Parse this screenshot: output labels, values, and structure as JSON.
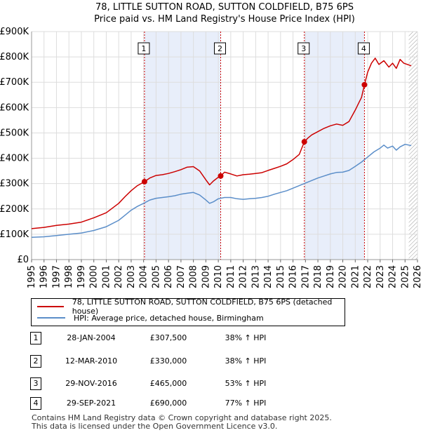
{
  "chart_data": {
    "type": "line",
    "title": "78, LITTLE SUTTON ROAD, SUTTON COLDFIELD, B75 6PS",
    "subtitle": "Price paid vs. HM Land Registry's House Price Index (HPI)",
    "xlabel": "",
    "ylabel": "",
    "xlim": [
      1995,
      2026
    ],
    "ylim": [
      0,
      900000
    ],
    "x_ticks": [
      "1995",
      "1996",
      "1997",
      "1998",
      "1999",
      "2000",
      "2001",
      "2002",
      "2003",
      "2004",
      "2005",
      "2006",
      "2007",
      "2008",
      "2009",
      "2010",
      "2011",
      "2012",
      "2013",
      "2014",
      "2015",
      "2016",
      "2017",
      "2018",
      "2019",
      "2020",
      "2021",
      "2022",
      "2023",
      "2024",
      "2025",
      "2026"
    ],
    "y_ticks": [
      {
        "value": 0,
        "label": "£0"
      },
      {
        "value": 100000,
        "label": "£100K"
      },
      {
        "value": 200000,
        "label": "£200K"
      },
      {
        "value": 300000,
        "label": "£300K"
      },
      {
        "value": 400000,
        "label": "£400K"
      },
      {
        "value": 500000,
        "label": "£500K"
      },
      {
        "value": 600000,
        "label": "£600K"
      },
      {
        "value": 700000,
        "label": "£700K"
      },
      {
        "value": 800000,
        "label": "£800K"
      },
      {
        "value": 900000,
        "label": "£900K"
      }
    ],
    "series": [
      {
        "name": "78, LITTLE SUTTON ROAD, SUTTON COLDFIELD, B75 6PS (detached house)",
        "color": "#cc0000",
        "x": [
          1995.0,
          1996.0,
          1997.0,
          1998.0,
          1999.0,
          2000.0,
          2001.0,
          2002.0,
          2002.5,
          2003.0,
          2003.5,
          2004.07,
          2004.5,
          2005.0,
          2005.5,
          2006.0,
          2006.5,
          2007.0,
          2007.5,
          2008.0,
          2008.5,
          2009.0,
          2009.3,
          2009.6,
          2010.0,
          2010.19,
          2010.5,
          2011.0,
          2011.5,
          2012.0,
          2012.5,
          2013.0,
          2013.5,
          2014.0,
          2014.5,
          2015.0,
          2015.5,
          2016.0,
          2016.5,
          2016.91,
          2017.2,
          2017.5,
          2018.0,
          2018.5,
          2019.0,
          2019.5,
          2020.0,
          2020.5,
          2021.0,
          2021.3,
          2021.5,
          2021.74,
          2022.0,
          2022.3,
          2022.6,
          2022.9,
          2023.3,
          2023.7,
          2024.0,
          2024.3,
          2024.6,
          2024.9,
          2025.2,
          2025.5
        ],
        "values": [
          122000,
          127000,
          135000,
          140000,
          148000,
          165000,
          185000,
          222000,
          248000,
          272000,
          292000,
          307500,
          322000,
          332000,
          335000,
          340000,
          347000,
          355000,
          365000,
          367000,
          350000,
          315000,
          295000,
          310000,
          325000,
          330000,
          345000,
          338000,
          330000,
          335000,
          337000,
          340000,
          343000,
          352000,
          360000,
          368000,
          378000,
          395000,
          415000,
          465000,
          480000,
          492000,
          505000,
          518000,
          528000,
          535000,
          530000,
          545000,
          590000,
          620000,
          640000,
          690000,
          740000,
          775000,
          795000,
          770000,
          785000,
          760000,
          775000,
          755000,
          790000,
          775000,
          770000,
          765000
        ]
      },
      {
        "name": "HPI: Average price, detached house, Birmingham",
        "color": "#5b8ec9",
        "x": [
          1995.0,
          1996.0,
          1997.0,
          1998.0,
          1999.0,
          2000.0,
          2001.0,
          2002.0,
          2002.5,
          2003.0,
          2003.5,
          2004.0,
          2004.5,
          2005.0,
          2005.5,
          2006.0,
          2006.5,
          2007.0,
          2007.5,
          2008.0,
          2008.5,
          2009.0,
          2009.3,
          2009.6,
          2010.0,
          2010.5,
          2011.0,
          2011.5,
          2012.0,
          2012.5,
          2013.0,
          2013.5,
          2014.0,
          2014.5,
          2015.0,
          2015.5,
          2016.0,
          2016.5,
          2017.0,
          2017.5,
          2018.0,
          2018.5,
          2019.0,
          2019.5,
          2020.0,
          2020.5,
          2021.0,
          2021.5,
          2022.0,
          2022.5,
          2023.0,
          2023.3,
          2023.6,
          2024.0,
          2024.3,
          2024.6,
          2025.0,
          2025.5
        ],
        "values": [
          88000,
          90000,
          95000,
          100000,
          105000,
          115000,
          130000,
          155000,
          175000,
          195000,
          210000,
          222000,
          235000,
          242000,
          245000,
          248000,
          252000,
          258000,
          262000,
          265000,
          255000,
          235000,
          222000,
          228000,
          240000,
          245000,
          245000,
          240000,
          238000,
          240000,
          242000,
          245000,
          250000,
          258000,
          265000,
          272000,
          282000,
          292000,
          302000,
          312000,
          322000,
          330000,
          338000,
          344000,
          345000,
          352000,
          368000,
          385000,
          405000,
          425000,
          440000,
          452000,
          440000,
          448000,
          432000,
          445000,
          455000,
          450000
        ]
      }
    ],
    "transactions": [
      {
        "num": "1",
        "x": 2004.07,
        "value": 307500
      },
      {
        "num": "2",
        "x": 2010.19,
        "value": 330000
      },
      {
        "num": "3",
        "x": 2016.91,
        "value": 465000
      },
      {
        "num": "4",
        "x": 2021.74,
        "value": 690000
      }
    ],
    "shaded_spans": [
      [
        2004.07,
        2010.19
      ],
      [
        2016.91,
        2021.74
      ]
    ],
    "future_hatch_from": 2025.3
  },
  "legend": {
    "property_label": "78, LITTLE SUTTON ROAD, SUTTON COLDFIELD, B75 6PS (detached house)",
    "hpi_label": "HPI: Average price, detached house, Birmingham"
  },
  "table": [
    {
      "num": "1",
      "date": "28-JAN-2004",
      "price": "£307,500",
      "hpi": "38% ↑ HPI"
    },
    {
      "num": "2",
      "date": "12-MAR-2010",
      "price": "£330,000",
      "hpi": "38% ↑ HPI"
    },
    {
      "num": "3",
      "date": "29-NOV-2016",
      "price": "£465,000",
      "hpi": "53% ↑ HPI"
    },
    {
      "num": "4",
      "date": "29-SEP-2021",
      "price": "£690,000",
      "hpi": "77% ↑ HPI"
    }
  ],
  "footer": {
    "line1": "Contains HM Land Registry data © Crown copyright and database right 2025.",
    "line2": "This data is licensed under the Open Government Licence v3.0."
  },
  "colors": {
    "property": "#cc0000",
    "hpi": "#5b8ec9",
    "shade": "#e8eefa",
    "grid": "#dddddd"
  }
}
